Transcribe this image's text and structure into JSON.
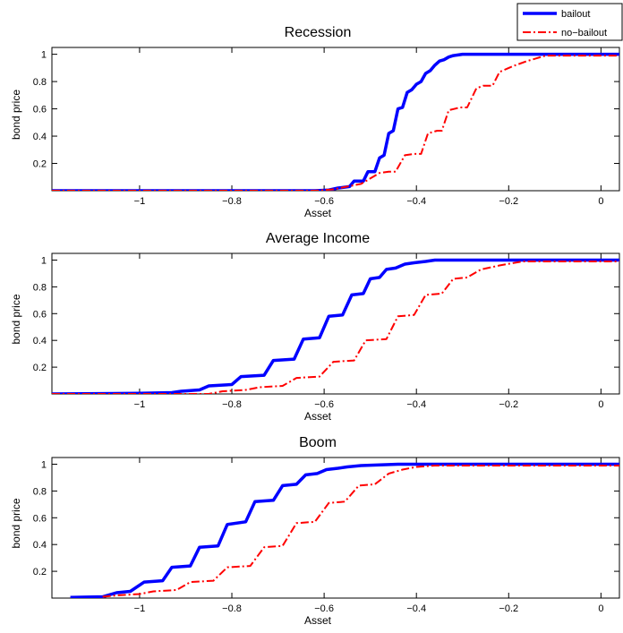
{
  "legend": {
    "placement": "top-right",
    "entries": [
      {
        "label": "bailout",
        "color": "#0000ff",
        "dash": "solid"
      },
      {
        "label": "no−bailout",
        "color": "#ff0000",
        "dash": "dashdot"
      }
    ]
  },
  "chart_data": [
    {
      "type": "line",
      "title": "Recession",
      "xlabel": "Asset",
      "ylabel": "bond price",
      "xlim": [
        -1.19,
        0.04
      ],
      "ylim": [
        0,
        1.05
      ],
      "xticks": [
        -1,
        -0.8,
        -0.6,
        -0.4,
        -0.2,
        0
      ],
      "xtick_labels": [
        "−1",
        "−0.8",
        "−0.6",
        "−0.4",
        "−0.2",
        "0"
      ],
      "yticks": [
        0.2,
        0.4,
        0.6,
        0.8,
        1
      ],
      "ytick_labels": [
        "0.2",
        "0.4",
        "0.6",
        "0.8",
        "1"
      ],
      "grid": false,
      "series": [
        {
          "name": "bailout",
          "color": "#0000ff",
          "x": [
            -1.19,
            -0.62,
            -0.59,
            -0.57,
            -0.545,
            -0.535,
            -0.515,
            -0.505,
            -0.49,
            -0.48,
            -0.47,
            -0.46,
            -0.45,
            -0.44,
            -0.43,
            -0.42,
            -0.41,
            -0.4,
            -0.39,
            -0.38,
            -0.37,
            -0.36,
            -0.35,
            -0.34,
            -0.33,
            -0.32,
            -0.31,
            -0.3,
            -0.28,
            0.04
          ],
          "y": [
            0,
            0,
            0.005,
            0.02,
            0.03,
            0.07,
            0.07,
            0.14,
            0.14,
            0.24,
            0.26,
            0.42,
            0.44,
            0.6,
            0.61,
            0.72,
            0.74,
            0.78,
            0.8,
            0.86,
            0.88,
            0.92,
            0.95,
            0.96,
            0.98,
            0.99,
            0.995,
            1,
            1,
            1
          ]
        },
        {
          "name": "no−bailout",
          "color": "#ff0000",
          "x": [
            -1.19,
            -0.62,
            -0.58,
            -0.55,
            -0.52,
            -0.5,
            -0.48,
            -0.46,
            -0.445,
            -0.425,
            -0.405,
            -0.39,
            -0.375,
            -0.355,
            -0.345,
            -0.33,
            -0.305,
            -0.29,
            -0.27,
            -0.255,
            -0.235,
            -0.22,
            -0.2,
            -0.185,
            -0.16,
            -0.14,
            -0.12,
            0.04
          ],
          "y": [
            0,
            0,
            0.01,
            0.03,
            0.05,
            0.09,
            0.13,
            0.14,
            0.14,
            0.26,
            0.27,
            0.27,
            0.42,
            0.44,
            0.44,
            0.59,
            0.61,
            0.61,
            0.75,
            0.77,
            0.77,
            0.87,
            0.9,
            0.92,
            0.95,
            0.97,
            0.99,
            0.99
          ]
        }
      ]
    },
    {
      "type": "line",
      "title": "Average Income",
      "xlabel": "Asset",
      "ylabel": "bond price",
      "xlim": [
        -1.19,
        0.04
      ],
      "ylim": [
        0,
        1.05
      ],
      "xticks": [
        -1,
        -0.8,
        -0.6,
        -0.4,
        -0.2,
        0
      ],
      "xtick_labels": [
        "−1",
        "−0.8",
        "−0.6",
        "−0.4",
        "−0.2",
        "0"
      ],
      "yticks": [
        0.2,
        0.4,
        0.6,
        0.8,
        1
      ],
      "ytick_labels": [
        "0.2",
        "0.4",
        "0.6",
        "0.8",
        "1"
      ],
      "grid": false,
      "series": [
        {
          "name": "bailout",
          "color": "#0000ff",
          "x": [
            -1.19,
            -1.0,
            -0.93,
            -0.91,
            -0.87,
            -0.85,
            -0.8,
            -0.78,
            -0.73,
            -0.71,
            -0.665,
            -0.645,
            -0.61,
            -0.59,
            -0.56,
            -0.54,
            -0.515,
            -0.5,
            -0.48,
            -0.465,
            -0.445,
            -0.425,
            -0.405,
            -0.38,
            -0.36,
            0.04
          ],
          "y": [
            0,
            0.005,
            0.01,
            0.02,
            0.03,
            0.06,
            0.07,
            0.13,
            0.14,
            0.25,
            0.26,
            0.41,
            0.42,
            0.58,
            0.59,
            0.74,
            0.75,
            0.86,
            0.87,
            0.93,
            0.94,
            0.97,
            0.98,
            0.99,
            1,
            1
          ]
        },
        {
          "name": "no−bailout",
          "color": "#ff0000",
          "x": [
            -1.19,
            -0.85,
            -0.82,
            -0.77,
            -0.74,
            -0.69,
            -0.66,
            -0.61,
            -0.58,
            -0.535,
            -0.51,
            -0.465,
            -0.44,
            -0.405,
            -0.38,
            -0.345,
            -0.32,
            -0.29,
            -0.26,
            -0.22,
            -0.17,
            0.04
          ],
          "y": [
            0,
            0,
            0.02,
            0.03,
            0.05,
            0.06,
            0.12,
            0.13,
            0.24,
            0.25,
            0.4,
            0.41,
            0.58,
            0.59,
            0.74,
            0.75,
            0.86,
            0.87,
            0.93,
            0.96,
            0.99,
            0.99
          ]
        }
      ]
    },
    {
      "type": "line",
      "title": "Boom",
      "xlabel": "Asset",
      "ylabel": "bond price",
      "xlim": [
        -1.19,
        0.04
      ],
      "ylim": [
        0,
        1.05
      ],
      "xticks": [
        -1,
        -0.8,
        -0.6,
        -0.4,
        -0.2,
        0
      ],
      "xtick_labels": [
        "−1",
        "−0.8",
        "−0.6",
        "−0.4",
        "−0.2",
        "0"
      ],
      "yticks": [
        0.2,
        0.4,
        0.6,
        0.8,
        1
      ],
      "ytick_labels": [
        "0.2",
        "0.4",
        "0.6",
        "0.8",
        "1"
      ],
      "grid": false,
      "series": [
        {
          "name": "bailout",
          "color": "#0000ff",
          "x": [
            -1.15,
            -1.08,
            -1.05,
            -1.02,
            -0.99,
            -0.95,
            -0.93,
            -0.89,
            -0.87,
            -0.83,
            -0.81,
            -0.77,
            -0.75,
            -0.71,
            -0.69,
            -0.66,
            -0.64,
            -0.615,
            -0.595,
            -0.57,
            -0.55,
            -0.52,
            -0.48,
            -0.44,
            0.04
          ],
          "y": [
            0.005,
            0.01,
            0.04,
            0.05,
            0.12,
            0.13,
            0.23,
            0.24,
            0.38,
            0.39,
            0.55,
            0.57,
            0.72,
            0.73,
            0.84,
            0.85,
            0.92,
            0.93,
            0.96,
            0.97,
            0.98,
            0.99,
            0.995,
            1,
            1
          ]
        },
        {
          "name": "no−bailout",
          "color": "#ff0000",
          "x": [
            -1.08,
            -1.05,
            -1.0,
            -0.97,
            -0.92,
            -0.89,
            -0.84,
            -0.81,
            -0.76,
            -0.73,
            -0.69,
            -0.66,
            -0.62,
            -0.59,
            -0.555,
            -0.525,
            -0.49,
            -0.46,
            -0.43,
            -0.4,
            -0.36,
            0.04
          ],
          "y": [
            0.01,
            0.02,
            0.03,
            0.05,
            0.06,
            0.12,
            0.13,
            0.23,
            0.24,
            0.38,
            0.39,
            0.56,
            0.57,
            0.71,
            0.72,
            0.84,
            0.85,
            0.93,
            0.96,
            0.98,
            0.99,
            0.99
          ]
        }
      ]
    }
  ]
}
